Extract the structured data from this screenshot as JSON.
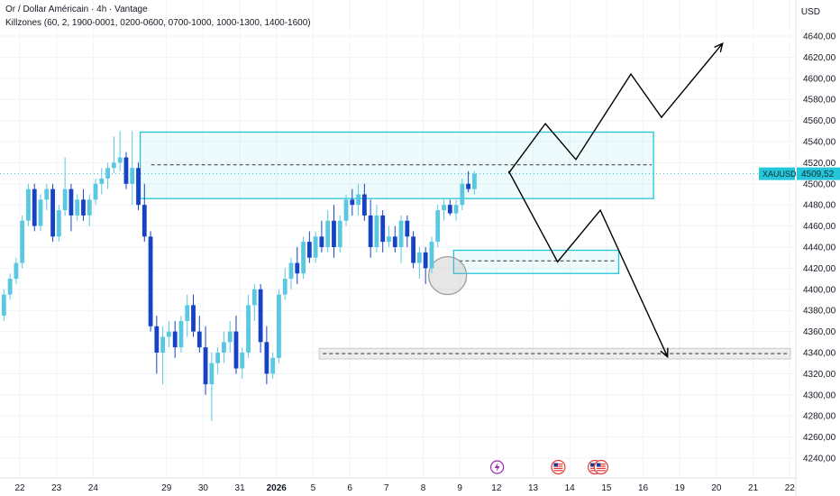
{
  "chart_data": {
    "type": "candlestick",
    "title": "Or / Dollar Américain · 4h · Vantage",
    "subtitle": "Killzones (60, 2, 1900-0001, 0200-0600, 0700-1000, 1000-1300, 1400-1600)",
    "currency": "USD",
    "symbol": "XAUUSD",
    "last_price": "4509,52",
    "ylim": [
      4230,
      4660
    ],
    "y_ticks": [
      "4240,00",
      "4260,00",
      "4280,00",
      "4300,00",
      "4320,00",
      "4340,00",
      "4360,00",
      "4380,00",
      "4400,00",
      "4420,00",
      "4440,00",
      "4460,00",
      "4480,00",
      "4500,00",
      "4520,00",
      "4540,00",
      "4560,00",
      "4580,00",
      "4600,00",
      "4620,00",
      "4640,00"
    ],
    "x_ticks": [
      {
        "label": "22",
        "bar": 0
      },
      {
        "label": "23",
        "bar": 6
      },
      {
        "label": "24",
        "bar": 12
      },
      {
        "label": "29",
        "bar": 24
      },
      {
        "label": "30",
        "bar": 30
      },
      {
        "label": "31",
        "bar": 36
      },
      {
        "label": "2026",
        "bar": 42,
        "bold": true
      },
      {
        "label": "5",
        "bar": 48
      },
      {
        "label": "6",
        "bar": 54
      },
      {
        "label": "7",
        "bar": 60
      },
      {
        "label": "8",
        "bar": 66
      },
      {
        "label": "9",
        "bar": 72
      },
      {
        "label": "12",
        "bar": 78
      },
      {
        "label": "13",
        "bar": 84
      },
      {
        "label": "14",
        "bar": 90
      },
      {
        "label": "15",
        "bar": 96
      },
      {
        "label": "16",
        "bar": 102
      },
      {
        "label": "19",
        "bar": 108
      },
      {
        "label": "20",
        "bar": 114
      },
      {
        "label": "21",
        "bar": 120
      },
      {
        "label": "22",
        "bar": 126
      }
    ],
    "colors": {
      "up": "#5ac8e0",
      "down": "#1742c4",
      "zone": "#26c6da",
      "gray_zone": "#d9d9d9",
      "arrow": "#000000"
    },
    "candles": [
      [
        4340,
        4348,
        4320,
        4332
      ],
      [
        4332,
        4360,
        4330,
        4355
      ],
      [
        4355,
        4380,
        4350,
        4375
      ],
      [
        4375,
        4400,
        4370,
        4395
      ],
      [
        4395,
        4415,
        4390,
        4410
      ],
      [
        4410,
        4430,
        4405,
        4425
      ],
      [
        4425,
        4470,
        4420,
        4465
      ],
      [
        4465,
        4500,
        4460,
        4495
      ],
      [
        4495,
        4500,
        4455,
        4460
      ],
      [
        4460,
        4490,
        4455,
        4485
      ],
      [
        4485,
        4500,
        4475,
        4495
      ],
      [
        4495,
        4500,
        4445,
        4450
      ],
      [
        4450,
        4480,
        4445,
        4475
      ],
      [
        4475,
        4525,
        4470,
        4495
      ],
      [
        4495,
        4500,
        4455,
        4470
      ],
      [
        4470,
        4490,
        4465,
        4485
      ],
      [
        4485,
        4495,
        4465,
        4470
      ],
      [
        4470,
        4490,
        4460,
        4485
      ],
      [
        4485,
        4505,
        4480,
        4500
      ],
      [
        4500,
        4515,
        4490,
        4505
      ],
      [
        4505,
        4520,
        4495,
        4515
      ],
      [
        4515,
        4545,
        4510,
        4520
      ],
      [
        4520,
        4550,
        4512,
        4525
      ],
      [
        4525,
        4530,
        4495,
        4500
      ],
      [
        4500,
        4550,
        4480,
        4515
      ],
      [
        4515,
        4520,
        4475,
        4480
      ],
      [
        4480,
        4500,
        4445,
        4450
      ],
      [
        4450,
        4455,
        4360,
        4365
      ],
      [
        4365,
        4375,
        4320,
        4340
      ],
      [
        4340,
        4365,
        4310,
        4355
      ],
      [
        4355,
        4370,
        4345,
        4360
      ],
      [
        4360,
        4370,
        4335,
        4345
      ],
      [
        4345,
        4375,
        4340,
        4370
      ],
      [
        4370,
        4395,
        4355,
        4385
      ],
      [
        4385,
        4395,
        4355,
        4360
      ],
      [
        4360,
        4375,
        4340,
        4345
      ],
      [
        4345,
        4365,
        4300,
        4310
      ],
      [
        4310,
        4340,
        4275,
        4330
      ],
      [
        4330,
        4345,
        4320,
        4340
      ],
      [
        4340,
        4360,
        4330,
        4350
      ],
      [
        4350,
        4370,
        4340,
        4360
      ],
      [
        4360,
        4375,
        4320,
        4325
      ],
      [
        4325,
        4345,
        4315,
        4340
      ],
      [
        4340,
        4395,
        4335,
        4385
      ],
      [
        4385,
        4405,
        4370,
        4400
      ],
      [
        4400,
        4405,
        4340,
        4350
      ],
      [
        4350,
        4365,
        4310,
        4320
      ],
      [
        4320,
        4340,
        4315,
        4335
      ],
      [
        4335,
        4400,
        4330,
        4395
      ],
      [
        4395,
        4420,
        4390,
        4410
      ],
      [
        4410,
        4430,
        4400,
        4425
      ],
      [
        4425,
        4440,
        4405,
        4415
      ],
      [
        4415,
        4450,
        4410,
        4445
      ],
      [
        4445,
        4455,
        4425,
        4430
      ],
      [
        4430,
        4455,
        4425,
        4450
      ],
      [
        4450,
        4465,
        4435,
        4440
      ],
      [
        4440,
        4475,
        4435,
        4465
      ],
      [
        4465,
        4480,
        4430,
        4440
      ],
      [
        4440,
        4470,
        4435,
        4465
      ],
      [
        4465,
        4490,
        4460,
        4485
      ],
      [
        4485,
        4495,
        4470,
        4480
      ],
      [
        4480,
        4500,
        4470,
        4490
      ],
      [
        4490,
        4500,
        4465,
        4470
      ],
      [
        4470,
        4485,
        4430,
        4440
      ],
      [
        4440,
        4480,
        4435,
        4470
      ],
      [
        4470,
        4475,
        4435,
        4445
      ],
      [
        4445,
        4460,
        4440,
        4450
      ],
      [
        4450,
        4460,
        4435,
        4440
      ],
      [
        4440,
        4470,
        4425,
        4465
      ],
      [
        4465,
        4470,
        4440,
        4450
      ],
      [
        4450,
        4455,
        4420,
        4425
      ],
      [
        4425,
        4440,
        4410,
        4435
      ],
      [
        4435,
        4440,
        4405,
        4420
      ],
      [
        4420,
        4450,
        4415,
        4445
      ],
      [
        4445,
        4480,
        4440,
        4475
      ],
      [
        4475,
        4485,
        4465,
        4480
      ],
      [
        4480,
        4485,
        4470,
        4472
      ],
      [
        4472,
        4485,
        4465,
        4480
      ],
      [
        4480,
        4505,
        4475,
        4500
      ],
      [
        4500,
        4512,
        4492,
        4495
      ],
      [
        4495,
        4512,
        4490,
        4509.52
      ]
    ],
    "annotations": {
      "top_zone": {
        "bar_from": 20,
        "bar_to": 104,
        "y_top": 4549,
        "y_bottom": 4486,
        "dashed_y": 4518
      },
      "small_zone": {
        "bar_from": 71,
        "bar_to": 98,
        "y_top": 4437,
        "y_bottom": 4415,
        "dashed_y": 4427
      },
      "gray_zone": {
        "bar_from": 49,
        "bar_to": 128,
        "y_top": 4344,
        "y_bottom": 4334,
        "dashed_y": 4339
      },
      "circle": {
        "bar": 70,
        "y": 4413
      },
      "path_up": [
        [
          80,
          4510
        ],
        [
          86,
          4557
        ],
        [
          91,
          4523
        ],
        [
          100,
          4604
        ],
        [
          105,
          4563
        ],
        [
          115,
          4633
        ]
      ],
      "path_down": [
        [
          80,
          4512
        ],
        [
          88,
          4426
        ],
        [
          95,
          4475
        ],
        [
          106,
          4336
        ]
      ]
    },
    "event_icons": [
      {
        "bar": 79,
        "type": "lightning"
      },
      {
        "bar": 89,
        "type": "us-flag"
      },
      {
        "bar": 95,
        "type": "us-flag"
      },
      {
        "bar": 96,
        "type": "us-flag"
      }
    ]
  }
}
